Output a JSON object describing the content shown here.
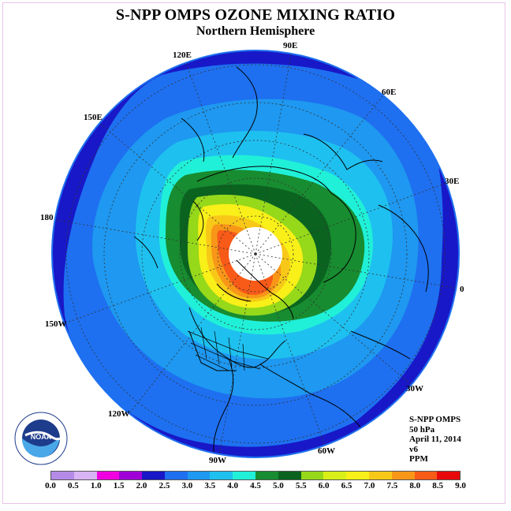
{
  "title": "S-NPP OMPS OZONE MIXING RATIO",
  "subtitle": "Northern Hemisphere",
  "longitude_labels": {
    "e90": "90E",
    "e60": "60E",
    "e30": "30E",
    "zero": "0",
    "w30": "30W",
    "w60": "60W",
    "w90": "90W",
    "w120": "120W",
    "w150": "150W",
    "d180": "180",
    "e150": "150E",
    "e120": "120E"
  },
  "info": {
    "line1": "S-NPP OMPS",
    "line2": "50 hPa",
    "line3": "April 11, 2014",
    "line4": "v6",
    "line5": "PPM"
  },
  "logo": {
    "text": "NOAA"
  },
  "colorbar": {
    "ticks": [
      "0.0",
      "0.5",
      "1.0",
      "1.5",
      "2.0",
      "2.5",
      "3.0",
      "3.5",
      "4.0",
      "4.5",
      "5.0",
      "5.5",
      "6.0",
      "6.5",
      "7.0",
      "7.5",
      "8.0",
      "8.5",
      "9.0"
    ],
    "colors": [
      "#b38be6",
      "#d8b4f4",
      "#f000e0",
      "#a000d8",
      "#1818c8",
      "#1e70f0",
      "#1e98f0",
      "#1ec0f0",
      "#20f0d8",
      "#188c30",
      "#0a6420",
      "#96d81a",
      "#d8f018",
      "#f8f018",
      "#f8c818",
      "#f89618",
      "#f85a18",
      "#e80a0a",
      "#8c5a46"
    ]
  },
  "map_colors": {
    "outer": "#1818c8",
    "band1": "#1e70f0",
    "band2": "#1e98f0",
    "band3": "#1ec0f0",
    "band4": "#20f0d8",
    "band5": "#188c30",
    "band6": "#0a6420",
    "band7": "#96d81a",
    "band8": "#f8f018",
    "band9": "#f8c818",
    "band10": "#f89618",
    "band11": "#f85a18",
    "nodata": "#ffffff"
  }
}
